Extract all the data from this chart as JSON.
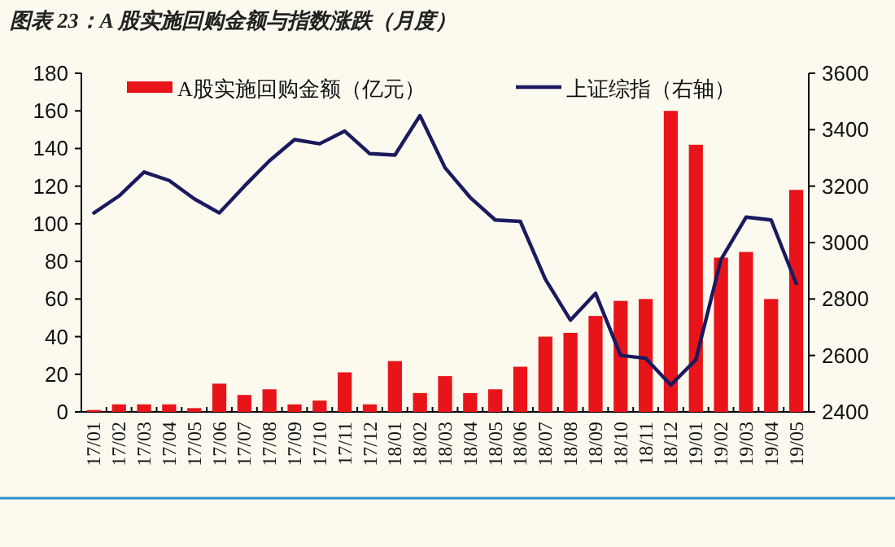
{
  "chart_data": {
    "type": "bar",
    "title": "图表 23：A 股实施回购金额与指数涨跌（月度）",
    "categories": [
      "17/01",
      "17/02",
      "17/03",
      "17/04",
      "17/05",
      "17/06",
      "17/07",
      "17/08",
      "17/09",
      "17/10",
      "17/11",
      "17/12",
      "18/01",
      "18/02",
      "18/03",
      "18/04",
      "18/05",
      "18/06",
      "18/07",
      "18/08",
      "18/09",
      "18/10",
      "18/11",
      "18/12",
      "19/01",
      "19/02",
      "19/03",
      "19/04",
      "19/05"
    ],
    "series": [
      {
        "name": "A股实施回购金额（亿元）",
        "color": "#e8141a",
        "values": [
          1,
          4,
          4,
          4,
          2,
          15,
          9,
          12,
          4,
          6,
          21,
          4,
          27,
          10,
          19,
          10,
          12,
          24,
          40,
          42,
          51,
          59,
          60,
          160,
          142,
          82,
          85,
          60,
          118
        ]
      },
      {
        "name": "上证综指（右轴）",
        "type": "line",
        "axis": "y2",
        "color": "#1a1a5e",
        "values": [
          3105,
          3165,
          3250,
          3220,
          3155,
          3105,
          3200,
          3290,
          3365,
          3350,
          3395,
          3315,
          3310,
          3450,
          3265,
          3160,
          3080,
          3075,
          2870,
          2725,
          2820,
          2600,
          2590,
          2495,
          2585,
          2940,
          3090,
          3080,
          2855
        ]
      }
    ],
    "ylim": [
      0,
      180
    ],
    "yticks": [
      0,
      20,
      40,
      60,
      80,
      100,
      120,
      140,
      160,
      180
    ],
    "y2lim": [
      2400,
      3600
    ],
    "y2ticks": [
      2400,
      2600,
      2800,
      3000,
      3200,
      3400,
      3600
    ],
    "grid": false,
    "legend": "top"
  }
}
